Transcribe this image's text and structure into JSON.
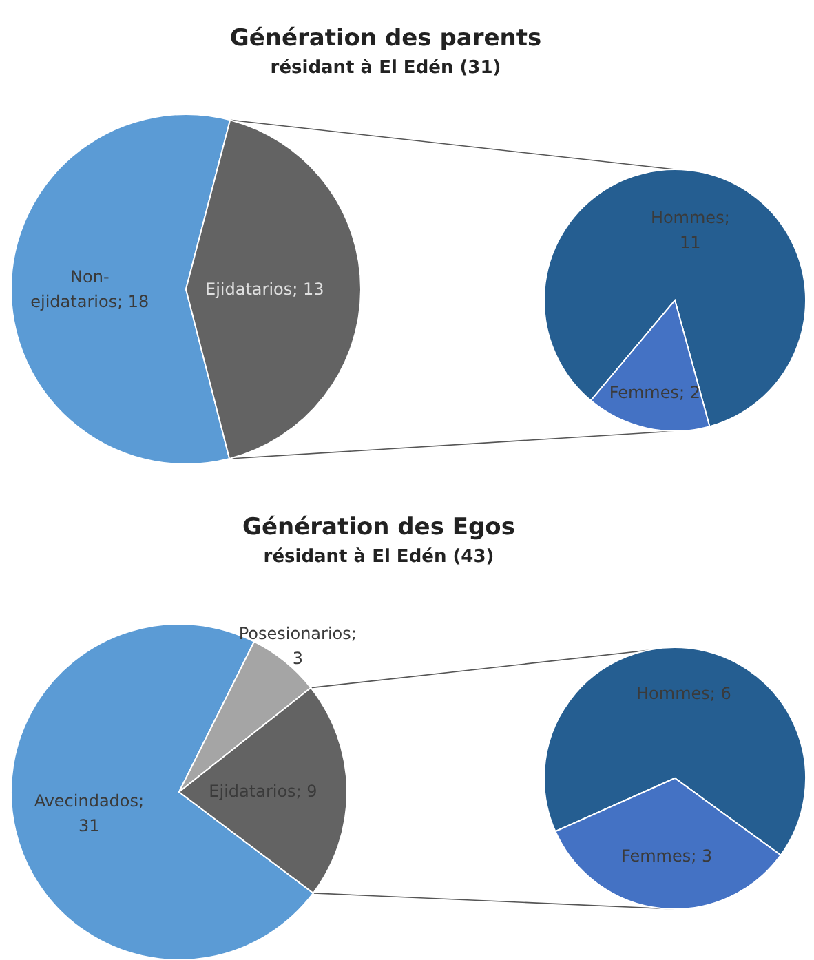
{
  "chart_data": [
    {
      "type": "pie",
      "title": "Génération des parents",
      "subtitle": "résidant à El Edén (31)",
      "categories": [
        "Non-ejidatarios",
        "Ejidatarios"
      ],
      "values": [
        18,
        13
      ],
      "colors": [
        "#5b9bd5",
        "#636363"
      ],
      "value_labels": [
        "; 18",
        "; 13"
      ]
    },
    {
      "type": "pie",
      "categories": [
        "Hommes",
        "Femmes"
      ],
      "values": [
        11,
        2
      ],
      "colors": [
        "#255e91",
        "#4472c4"
      ],
      "value_labels": [
        "; 11",
        "; 2"
      ]
    },
    {
      "type": "pie",
      "title": "Génération des Egos",
      "subtitle": "résidant à El Edén (43)",
      "categories": [
        "Avecindados",
        "Posesionarios",
        "Ejidatarios"
      ],
      "values": [
        31,
        3,
        9
      ],
      "colors": [
        "#5b9bd5",
        "#a5a5a5",
        "#636363"
      ],
      "value_labels": [
        "; 31",
        "; 3",
        "; 9"
      ]
    },
    {
      "type": "pie",
      "categories": [
        "Hommes",
        "Femmes"
      ],
      "values": [
        6,
        3
      ],
      "colors": [
        "#255e91",
        "#4472c4"
      ],
      "value_labels": [
        "; 6",
        "; 3"
      ]
    }
  ]
}
